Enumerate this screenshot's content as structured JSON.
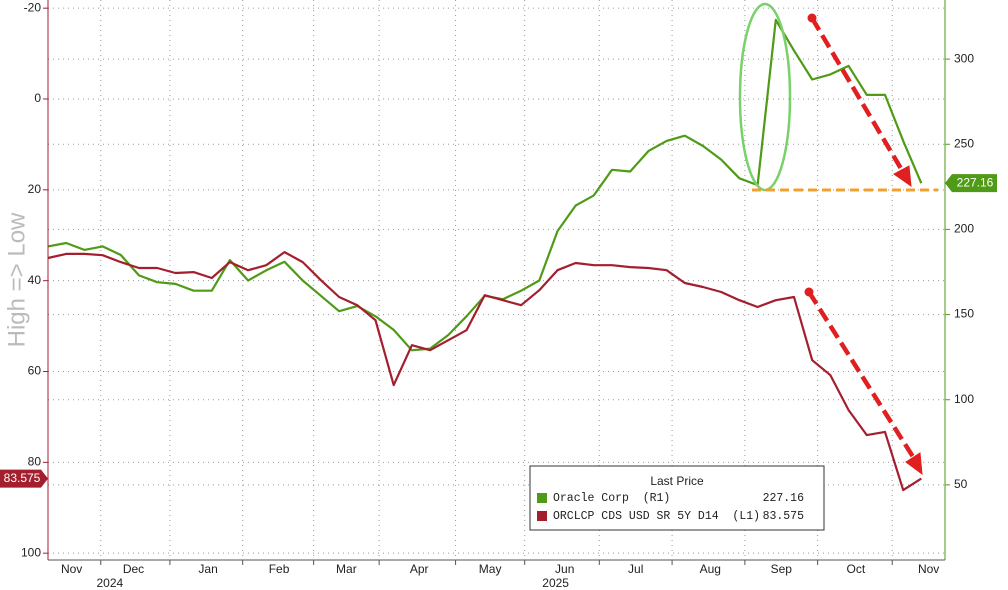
{
  "chart_data": {
    "type": "line",
    "y_label": "High => Low",
    "y_inverted": true,
    "grid": true,
    "x": [
      0,
      1,
      2,
      3,
      4,
      5,
      6,
      7,
      8,
      9,
      10,
      11,
      12,
      13,
      14,
      15,
      16,
      17,
      18,
      19,
      20,
      21,
      22,
      23,
      24,
      25,
      26,
      27,
      28,
      29,
      30,
      31,
      32,
      33,
      34,
      35,
      36,
      37,
      38,
      39,
      40,
      41,
      42,
      43,
      44,
      45,
      46,
      47,
      48
    ],
    "xlim": [
      0,
      49.3
    ],
    "xticks": [
      2.9,
      6.7,
      10.7,
      14.6,
      18.2,
      22.4,
      26.2,
      30.3,
      34.3,
      38.3,
      42.3,
      46.4
    ],
    "x_tick_labels": [
      {
        "value": 1.3,
        "label": "Nov"
      },
      {
        "value": 4.7,
        "label": "Dec"
      },
      {
        "value": 8.8,
        "label": "Jan"
      },
      {
        "value": 12.7,
        "label": "Feb"
      },
      {
        "value": 16.4,
        "label": "Mar"
      },
      {
        "value": 20.4,
        "label": "Apr"
      },
      {
        "value": 24.3,
        "label": "May"
      },
      {
        "value": 28.4,
        "label": "Jun"
      },
      {
        "value": 32.3,
        "label": "Jul"
      },
      {
        "value": 36.4,
        "label": "Aug"
      },
      {
        "value": 40.3,
        "label": "Sep"
      },
      {
        "value": 44.4,
        "label": "Oct"
      },
      {
        "value": 48.4,
        "label": "Nov"
      }
    ],
    "x_year_labels": [
      {
        "value": 3.4,
        "label": "2024"
      },
      {
        "value": 27.9,
        "label": "2025"
      }
    ],
    "ylim": [
      -21.8,
      101.5
    ],
    "yticks": [
      -20,
      0,
      20,
      40,
      60,
      80,
      100
    ],
    "y2lim": [
      5.9,
      334.7
    ],
    "y2ticks": [
      50,
      100,
      150,
      200,
      250,
      300
    ],
    "legend_title": "Last Price",
    "series": [
      {
        "name": "Oracle Corp  (R1)",
        "color": "#4f9a16",
        "axis": "y2",
        "values": [
          190,
          192,
          188,
          190,
          185,
          173,
          169,
          168,
          164,
          164,
          182,
          170,
          176,
          181,
          170,
          161,
          152,
          155,
          149,
          141,
          129,
          130,
          138,
          149,
          161,
          159,
          164,
          170,
          199,
          214,
          220,
          235,
          234,
          246,
          252,
          255,
          249,
          241,
          230,
          226,
          323,
          305,
          288,
          291,
          296,
          279,
          279,
          252,
          227.16
        ]
      },
      {
        "name": "ORCLCP CDS USD SR 5Y D14  (L1)",
        "color": "#a31f2e",
        "axis": "y",
        "values": [
          35.0,
          34.1,
          34.1,
          34.4,
          35.9,
          37.2,
          37.2,
          38.3,
          38.1,
          39.4,
          35.9,
          37.7,
          36.6,
          33.7,
          35.9,
          39.9,
          43.6,
          45.4,
          48.7,
          63.0,
          54.2,
          55.3,
          53.1,
          50.9,
          43.2,
          44.3,
          45.4,
          42.1,
          37.7,
          36.1,
          36.6,
          36.6,
          37.0,
          37.2,
          37.7,
          40.5,
          41.4,
          42.5,
          44.3,
          45.8,
          44.3,
          43.6,
          57.5,
          60.8,
          68.5,
          74.0,
          73.3,
          86.1,
          83.575
        ]
      }
    ]
  }
}
